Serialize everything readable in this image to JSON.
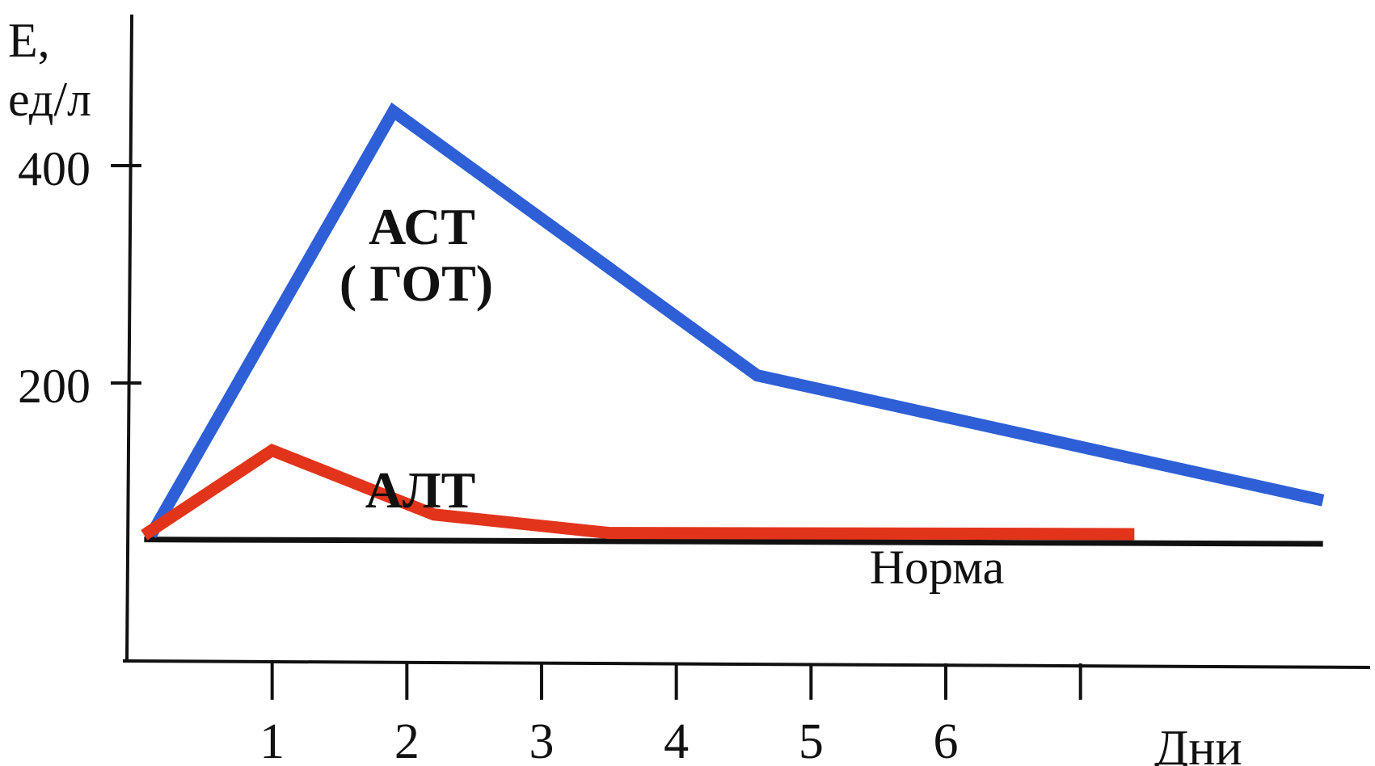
{
  "chart_data": {
    "type": "line",
    "ylabel_line1": "Е,",
    "ylabel_line2": "ед/л",
    "xlabel": "Дни",
    "y_ticks": [
      {
        "value": 200,
        "label": "200"
      },
      {
        "value": 400,
        "label": "400"
      }
    ],
    "x_ticks": [
      {
        "value": 1,
        "label": "1"
      },
      {
        "value": 2,
        "label": "2"
      },
      {
        "value": 3,
        "label": "3"
      },
      {
        "value": 4,
        "label": "4"
      },
      {
        "value": 5,
        "label": "5"
      },
      {
        "value": 6,
        "label": "6"
      },
      {
        "value": 7,
        "label": ""
      }
    ],
    "xlim": [
      0,
      8.8
    ],
    "ylim": [
      0,
      500
    ],
    "grid": false,
    "series": [
      {
        "name_lines": [
          "АСТ",
          "( ГОТ)"
        ],
        "color": "#2e5fd6",
        "x": [
          0.1,
          1.9,
          4.6,
          8.8
        ],
        "y": [
          60,
          450,
          207,
          92
        ]
      },
      {
        "name_lines": [
          "АЛТ"
        ],
        "color": "#e2341b",
        "x": [
          0.05,
          1.0,
          2.2,
          3.5,
          7.4
        ],
        "y": [
          60,
          138,
          79,
          62,
          61
        ]
      }
    ],
    "norm": {
      "label": "Норма",
      "color": "#111111",
      "x": [
        0.05,
        8.8
      ],
      "y": [
        56,
        52
      ]
    }
  }
}
